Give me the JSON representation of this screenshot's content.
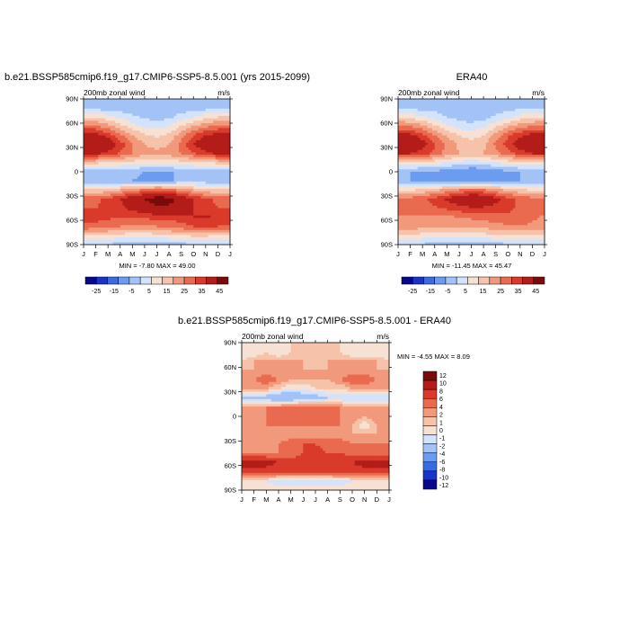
{
  "colors": {
    "panel_scale": [
      "#08088f",
      "#1a33c9",
      "#3a6be0",
      "#6b9cf0",
      "#a3c3f7",
      "#d2e3fb",
      "#f7e1d4",
      "#f6c3aa",
      "#f2997c",
      "#ea6a4f",
      "#d93a2b",
      "#b31c18",
      "#7a0b0b"
    ],
    "diff_scale": [
      "#08088f",
      "#1a33c9",
      "#3a6be0",
      "#6b9cf0",
      "#a3c3f7",
      "#d2e3fb",
      "#f7e1d4",
      "#f6c3aa",
      "#f2997c",
      "#ea6a4f",
      "#d93a2b",
      "#b31c18",
      "#7a0b0b"
    ]
  },
  "chart_data": [
    {
      "type": "heatmap",
      "title": "b.e21.BSSP585cmip6.f19_g17.CMIP6-SSP5-8.5.001 (yrs 2015-2099)",
      "subtitle_left": "200mb zonal wind",
      "subtitle_right": "m/s",
      "x_tick_labels": [
        "J",
        "F",
        "M",
        "A",
        "M",
        "J",
        "J",
        "A",
        "S",
        "O",
        "N",
        "D",
        "J"
      ],
      "y_tick_labels": [
        "90N",
        "60N",
        "30N",
        "0",
        "30S",
        "60S",
        "90S"
      ],
      "latitudes": [
        90,
        60,
        30,
        0,
        -30,
        -60,
        -90
      ],
      "stats": "MIN =  -7.80 MAX =  49.00",
      "colorbar_labels": [
        "-25",
        "-15",
        "-5",
        "5",
        "15",
        "25",
        "35",
        "45"
      ],
      "grid_values": [
        [
          0,
          0,
          0,
          0,
          0,
          0,
          0,
          0,
          0,
          0,
          0,
          0,
          0
        ],
        [
          -2,
          -2,
          -2,
          -3,
          -3,
          -3,
          -3,
          -3,
          -3,
          -3,
          -2,
          -2,
          -2
        ],
        [
          10,
          9,
          7,
          4,
          1,
          -1,
          -2,
          -1,
          2,
          5,
          8,
          10,
          10
        ],
        [
          22,
          21,
          17,
          12,
          7,
          4,
          3,
          5,
          10,
          15,
          19,
          21,
          22
        ],
        [
          33,
          33,
          28,
          21,
          15,
          11,
          9,
          11,
          18,
          25,
          30,
          33,
          33
        ],
        [
          40,
          40,
          35,
          28,
          20,
          15,
          13,
          15,
          22,
          30,
          36,
          40,
          40
        ],
        [
          32,
          31,
          28,
          24,
          20,
          17,
          17,
          17,
          20,
          24,
          28,
          31,
          32
        ],
        [
          12,
          11,
          10,
          9,
          8,
          6,
          6,
          7,
          8,
          9,
          10,
          11,
          12
        ],
        [
          -2,
          -2,
          -3,
          -3,
          -4,
          -5,
          -6,
          -6,
          -4,
          -3,
          -2,
          -2,
          -2
        ],
        [
          -3,
          -3,
          -3,
          -4,
          -5,
          -6,
          -6,
          -6,
          -4,
          -3,
          -3,
          -3,
          -3
        ],
        [
          10,
          10,
          12,
          15,
          18,
          21,
          23,
          22,
          18,
          15,
          12,
          10,
          10
        ],
        [
          24,
          24,
          26,
          30,
          35,
          40,
          45,
          44,
          36,
          30,
          26,
          24,
          24
        ],
        [
          25,
          25,
          26,
          28,
          32,
          35,
          38,
          38,
          34,
          30,
          27,
          25,
          25
        ],
        [
          28,
          27,
          26,
          25,
          25,
          26,
          27,
          27,
          28,
          30,
          31,
          29,
          28
        ],
        [
          24,
          23,
          22,
          20,
          19,
          19,
          20,
          21,
          23,
          25,
          26,
          25,
          24
        ],
        [
          10,
          10,
          9,
          8,
          7,
          7,
          8,
          9,
          10,
          11,
          11,
          10,
          10
        ],
        [
          0,
          0,
          -1,
          -2,
          -2,
          -3,
          -3,
          -3,
          -2,
          -1,
          0,
          0,
          0
        ]
      ]
    },
    {
      "type": "heatmap",
      "title": "ERA40",
      "subtitle_left": "200mb zonal wind",
      "subtitle_right": "m/s",
      "x_tick_labels": [
        "J",
        "F",
        "M",
        "A",
        "M",
        "J",
        "J",
        "A",
        "S",
        "O",
        "N",
        "D",
        "J"
      ],
      "y_tick_labels": [
        "90N",
        "60N",
        "30N",
        "0",
        "30S",
        "60S",
        "90S"
      ],
      "latitudes": [
        90,
        60,
        30,
        0,
        -30,
        -60,
        -90
      ],
      "stats": "MIN = -11.45 MAX =  45.47",
      "colorbar_labels": [
        "-25",
        "-15",
        "-5",
        "5",
        "15",
        "25",
        "35",
        "45"
      ],
      "grid_values": [
        [
          0,
          0,
          0,
          0,
          0,
          0,
          0,
          0,
          0,
          0,
          0,
          0,
          0
        ],
        [
          -1,
          -1,
          -2,
          -2,
          -3,
          -3,
          -3,
          -3,
          -3,
          -2,
          -1,
          -1,
          -1
        ],
        [
          10,
          8,
          6,
          3,
          0,
          -2,
          -3,
          -2,
          1,
          4,
          7,
          9,
          10
        ],
        [
          21,
          20,
          16,
          11,
          6,
          3,
          2,
          4,
          9,
          14,
          18,
          20,
          21
        ],
        [
          32,
          32,
          27,
          20,
          14,
          10,
          8,
          10,
          17,
          24,
          29,
          32,
          32
        ],
        [
          38,
          38,
          33,
          26,
          19,
          14,
          12,
          14,
          21,
          28,
          34,
          38,
          38
        ],
        [
          30,
          30,
          27,
          23,
          18,
          15,
          14,
          15,
          18,
          22,
          27,
          30,
          30
        ],
        [
          9,
          9,
          8,
          7,
          5,
          3,
          2,
          3,
          5,
          7,
          8,
          9,
          9
        ],
        [
          -5,
          -5,
          -6,
          -6,
          -8,
          -9,
          -10,
          -10,
          -8,
          -6,
          -5,
          -5,
          -5
        ],
        [
          -5,
          -5,
          -5,
          -6,
          -7,
          -8,
          -8,
          -8,
          -6,
          -5,
          -5,
          -5,
          -5
        ],
        [
          9,
          9,
          11,
          14,
          17,
          20,
          22,
          21,
          17,
          14,
          11,
          9,
          9
        ],
        [
          22,
          22,
          24,
          27,
          31,
          35,
          38,
          37,
          32,
          27,
          24,
          22,
          22
        ],
        [
          22,
          22,
          23,
          24,
          26,
          28,
          29,
          29,
          28,
          26,
          24,
          22,
          22
        ],
        [
          19,
          19,
          19,
          19,
          19,
          20,
          21,
          22,
          23,
          24,
          24,
          21,
          19
        ],
        [
          18,
          18,
          17,
          16,
          15,
          15,
          16,
          17,
          18,
          19,
          20,
          19,
          18
        ],
        [
          9,
          9,
          8,
          7,
          6,
          6,
          7,
          8,
          9,
          10,
          10,
          9,
          9
        ],
        [
          0,
          0,
          -1,
          -2,
          -3,
          -3,
          -3,
          -3,
          -2,
          -1,
          0,
          0,
          0
        ]
      ]
    },
    {
      "type": "heatmap",
      "title": "b.e21.BSSP585cmip6.f19_g17.CMIP6-SSP5-8.5.001 - ERA40",
      "subtitle_left": "200mb zonal wind",
      "subtitle_right": "m/s",
      "x_tick_labels": [
        "J",
        "F",
        "M",
        "A",
        "M",
        "J",
        "J",
        "A",
        "S",
        "O",
        "N",
        "D",
        "J"
      ],
      "y_tick_labels": [
        "90N",
        "60N",
        "30N",
        "0",
        "30S",
        "60S",
        "90S"
      ],
      "latitudes": [
        90,
        60,
        30,
        0,
        -30,
        -60,
        -90
      ],
      "stats": "MIN =  -4.55 MAX =   8.09",
      "colorbar_labels": [
        "12",
        "10",
        "8",
        "6",
        "4",
        "2",
        "1",
        "0",
        "-1",
        "-2",
        "-4",
        "-6",
        "-8",
        "-10",
        "-12"
      ],
      "grid_values": [
        [
          0,
          0,
          0,
          0,
          0,
          0,
          0,
          0,
          0,
          0,
          0,
          0,
          0
        ],
        [
          -1,
          -1,
          0,
          -1,
          0,
          0,
          0,
          0,
          0,
          -1,
          -1,
          -1,
          -1
        ],
        [
          0,
          1,
          1,
          1,
          1,
          1,
          0,
          1,
          1,
          1,
          1,
          1,
          0
        ],
        [
          1,
          1,
          1,
          1,
          1,
          1,
          1,
          1,
          1,
          1,
          1,
          1,
          1
        ],
        [
          2,
          2,
          3,
          2,
          1,
          1,
          1,
          1,
          2,
          3,
          3,
          2,
          2
        ],
        [
          1,
          1,
          1,
          0,
          -1,
          -1,
          0,
          0,
          0,
          1,
          1,
          1,
          1
        ],
        [
          -2,
          -3,
          -3,
          -4,
          -4,
          -3,
          -3,
          -2,
          -2,
          -2,
          -2,
          -2,
          -2
        ],
        [
          1,
          1,
          2,
          2,
          3,
          3,
          3,
          2,
          2,
          1,
          1,
          1,
          1
        ],
        [
          2,
          2,
          2,
          3,
          3,
          3,
          3,
          3,
          2,
          2,
          1,
          2,
          2
        ],
        [
          1,
          1,
          2,
          2,
          2,
          2,
          2,
          2,
          2,
          1,
          -1,
          1,
          1
        ],
        [
          1,
          1,
          1,
          1,
          1,
          1,
          1,
          1,
          1,
          1,
          1,
          1,
          1
        ],
        [
          2,
          1,
          1,
          2,
          3,
          4,
          4,
          3,
          3,
          2,
          2,
          2,
          2
        ],
        [
          2,
          2,
          2,
          2,
          3,
          4,
          5,
          4,
          4,
          3,
          2,
          2,
          2
        ],
        [
          8,
          8,
          7,
          6,
          5,
          5,
          6,
          6,
          6,
          6,
          7,
          8,
          8
        ],
        [
          5,
          5,
          5,
          4,
          4,
          4,
          4,
          4,
          5,
          5,
          5,
          5,
          5
        ],
        [
          -1,
          -1,
          -1,
          -2,
          -2,
          -2,
          -2,
          -2,
          -2,
          -1,
          -1,
          -1,
          -1
        ],
        [
          0,
          0,
          0,
          0,
          0,
          0,
          0,
          0,
          0,
          0,
          0,
          0,
          0
        ]
      ]
    }
  ]
}
